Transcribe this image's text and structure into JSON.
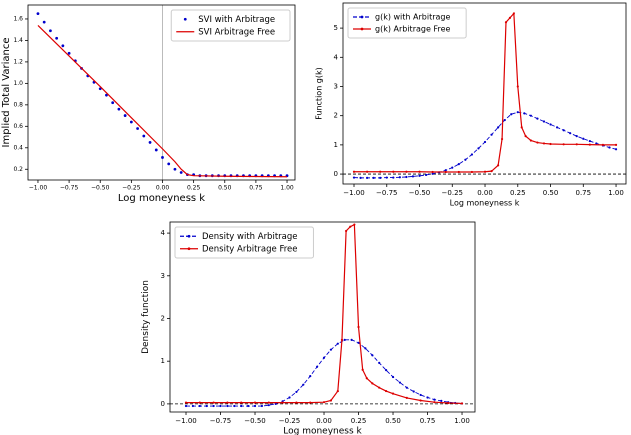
{
  "chart_data": [
    {
      "type": "line",
      "xlabel": "Log moneyness k",
      "ylabel": "Implied Total Variance",
      "xlim": [
        -1.08,
        1.064
      ],
      "ylim": [
        0.1,
        1.73
      ],
      "xticks": [
        {
          "value": -1,
          "label": "−1.00"
        },
        {
          "value": -0.75,
          "label": "−0.75"
        },
        {
          "value": -0.5,
          "label": "−0.50"
        },
        {
          "value": -0.25,
          "label": "−0.25"
        },
        {
          "value": 0,
          "label": "0.00"
        },
        {
          "value": 0.25,
          "label": "0.25"
        },
        {
          "value": 0.5,
          "label": "0.50"
        },
        {
          "value": 0.75,
          "label": "0.75"
        },
        {
          "value": 1,
          "label": "1.00"
        }
      ],
      "yticks": [
        0.2,
        0.4,
        0.6,
        0.8,
        {
          "value": 1,
          "label": "1.0"
        },
        1.2,
        1.4,
        1.6
      ],
      "vline": 0,
      "legend": "upper right",
      "series": [
        {
          "name": "SVI with Arbitrage",
          "color": "#0000cc",
          "linestyle": "none",
          "marker": true,
          "x": [
            -1,
            -0.95,
            -0.9,
            -0.85,
            -0.8,
            -0.75,
            -0.7,
            -0.65,
            -0.6,
            -0.55,
            -0.5,
            -0.45,
            -0.4,
            -0.35,
            -0.3,
            -0.25,
            -0.2,
            -0.15,
            -0.1,
            -0.05,
            0,
            0.05,
            0.1,
            0.15,
            0.2,
            0.25,
            0.3,
            0.35,
            0.4,
            0.45,
            0.5,
            0.55,
            0.6,
            0.65,
            0.7,
            0.75,
            0.8,
            0.85,
            0.9,
            0.95,
            1
          ],
          "values": [
            1.65,
            1.57,
            1.49,
            1.42,
            1.35,
            1.28,
            1.21,
            1.14,
            1.07,
            1.01,
            0.95,
            0.89,
            0.82,
            0.76,
            0.7,
            0.64,
            0.58,
            0.51,
            0.45,
            0.38,
            0.31,
            0.25,
            0.2,
            0.17,
            0.15,
            0.15,
            0.14,
            0.14,
            0.14,
            0.14,
            0.14,
            0.14,
            0.14,
            0.14,
            0.14,
            0.14,
            0.14,
            0.14,
            0.14,
            0.14,
            0.14
          ]
        },
        {
          "name": "SVI Arbitrage Free",
          "color": "#dd0000",
          "linestyle": "solid",
          "marker": false,
          "x": [
            -1,
            -0.5,
            0,
            0.1,
            0.15,
            0.2,
            0.25,
            0.5,
            1
          ],
          "values": [
            1.54,
            0.97,
            0.39,
            0.27,
            0.2,
            0.15,
            0.14,
            0.135,
            0.13
          ]
        }
      ]
    },
    {
      "type": "line",
      "xlabel": "Log moneyness k",
      "ylabel": "Function g(k)",
      "xlim": [
        -1.084,
        1.076
      ],
      "ylim": [
        -0.34,
        5.86
      ],
      "xticks": [
        {
          "value": -1,
          "label": "−1.00"
        },
        {
          "value": -0.75,
          "label": "−0.75"
        },
        {
          "value": -0.5,
          "label": "−0.50"
        },
        {
          "value": -0.25,
          "label": "−0.25"
        },
        {
          "value": 0,
          "label": "0.00"
        },
        {
          "value": 0.25,
          "label": "0.25"
        },
        {
          "value": 0.5,
          "label": "0.50"
        },
        {
          "value": 0.75,
          "label": "0.75"
        },
        {
          "value": 1,
          "label": "1.00"
        }
      ],
      "yticks": [
        0,
        1,
        2,
        3,
        4,
        5
      ],
      "hline": 0,
      "legend": "upper left",
      "series": [
        {
          "name": "g(k) with Arbitrage",
          "color": "#0000cc",
          "linestyle": "dashed",
          "marker": true,
          "x": [
            -1,
            -0.95,
            -0.9,
            -0.85,
            -0.8,
            -0.75,
            -0.7,
            -0.65,
            -0.6,
            -0.55,
            -0.5,
            -0.45,
            -0.4,
            -0.35,
            -0.3,
            -0.25,
            -0.2,
            -0.15,
            -0.1,
            -0.05,
            0,
            0.05,
            0.1,
            0.15,
            0.2,
            0.25,
            0.3,
            0.35,
            0.4,
            0.45,
            0.5,
            0.55,
            0.6,
            0.65,
            0.7,
            0.75,
            0.8,
            0.85,
            0.9,
            0.95,
            1
          ],
          "values": [
            -0.12,
            -0.13,
            -0.13,
            -0.13,
            -0.13,
            -0.12,
            -0.12,
            -0.11,
            -0.1,
            -0.08,
            -0.06,
            -0.03,
            0.01,
            0.06,
            0.13,
            0.22,
            0.34,
            0.49,
            0.67,
            0.88,
            1.1,
            1.35,
            1.6,
            1.85,
            2.05,
            2.12,
            2.08,
            2.0,
            1.9,
            1.8,
            1.7,
            1.6,
            1.5,
            1.4,
            1.3,
            1.21,
            1.13,
            1.05,
            0.98,
            0.91,
            0.85
          ]
        },
        {
          "name": "g(k) Arbitrage Free",
          "color": "#dd0000",
          "linestyle": "solid",
          "marker": true,
          "x": [
            -1,
            -0.9,
            -0.8,
            -0.7,
            -0.6,
            -0.5,
            -0.4,
            -0.3,
            -0.2,
            -0.1,
            0,
            0.05,
            0.1,
            0.13,
            0.16,
            0.19,
            0.22,
            0.25,
            0.28,
            0.31,
            0.35,
            0.4,
            0.45,
            0.5,
            0.6,
            0.7,
            0.8,
            0.9,
            1
          ],
          "values": [
            0.08,
            0.08,
            0.08,
            0.08,
            0.08,
            0.08,
            0.07,
            0.07,
            0.07,
            0.07,
            0.08,
            0.1,
            0.3,
            1.2,
            5.2,
            5.35,
            5.5,
            3.0,
            1.6,
            1.3,
            1.15,
            1.08,
            1.05,
            1.03,
            1.02,
            1.02,
            1.01,
            1.0,
            1.0
          ]
        }
      ]
    },
    {
      "type": "line",
      "xlabel": "Log moneyness k",
      "ylabel": "Density function",
      "xlim": [
        -1.116,
        1.094
      ],
      "ylim": [
        -0.19,
        4.26
      ],
      "xticks": [
        {
          "value": -1,
          "label": "−1.00"
        },
        {
          "value": -0.75,
          "label": "−0.75"
        },
        {
          "value": -0.5,
          "label": "−0.50"
        },
        {
          "value": -0.25,
          "label": "−0.25"
        },
        {
          "value": 0,
          "label": "0.00"
        },
        {
          "value": 0.25,
          "label": "0.25"
        },
        {
          "value": 0.5,
          "label": "0.50"
        },
        {
          "value": 0.75,
          "label": "0.75"
        },
        {
          "value": 1,
          "label": "1.00"
        }
      ],
      "yticks": [
        0,
        1,
        2,
        3,
        4
      ],
      "hline": 0,
      "legend": "upper left",
      "series": [
        {
          "name": "Density with Arbitrage",
          "color": "#0000cc",
          "linestyle": "dashed",
          "marker": true,
          "x": [
            -1,
            -0.95,
            -0.9,
            -0.85,
            -0.8,
            -0.75,
            -0.7,
            -0.65,
            -0.6,
            -0.55,
            -0.5,
            -0.45,
            -0.4,
            -0.35,
            -0.3,
            -0.25,
            -0.2,
            -0.15,
            -0.1,
            -0.05,
            0,
            0.05,
            0.1,
            0.15,
            0.2,
            0.25,
            0.3,
            0.35,
            0.4,
            0.45,
            0.5,
            0.55,
            0.6,
            0.65,
            0.7,
            0.75,
            0.8,
            0.85,
            0.9,
            0.95,
            1
          ],
          "values": [
            -0.05,
            -0.05,
            -0.05,
            -0.05,
            -0.05,
            -0.05,
            -0.05,
            -0.05,
            -0.05,
            -0.05,
            -0.05,
            -0.05,
            -0.03,
            0,
            0.06,
            0.15,
            0.28,
            0.45,
            0.65,
            0.87,
            1.08,
            1.27,
            1.41,
            1.5,
            1.5,
            1.43,
            1.3,
            1.14,
            0.96,
            0.79,
            0.63,
            0.5,
            0.38,
            0.29,
            0.21,
            0.15,
            0.1,
            0.07,
            0.04,
            0.02,
            0.01
          ]
        },
        {
          "name": "Density Arbitrage Free",
          "color": "#dd0000",
          "linestyle": "solid",
          "marker": true,
          "x": [
            -1,
            -0.9,
            -0.8,
            -0.7,
            -0.6,
            -0.5,
            -0.4,
            -0.3,
            -0.2,
            -0.1,
            0,
            0.05,
            0.1,
            0.13,
            0.16,
            0.19,
            0.22,
            0.25,
            0.28,
            0.31,
            0.35,
            0.4,
            0.45,
            0.5,
            0.6,
            0.7,
            0.8,
            0.9,
            1
          ],
          "values": [
            0.03,
            0.03,
            0.03,
            0.03,
            0.03,
            0.03,
            0.03,
            0.03,
            0.03,
            0.03,
            0.04,
            0.08,
            0.3,
            1.5,
            4.05,
            4.15,
            4.2,
            1.8,
            0.8,
            0.6,
            0.48,
            0.38,
            0.3,
            0.24,
            0.14,
            0.08,
            0.04,
            0.02,
            0.01
          ]
        }
      ]
    }
  ]
}
